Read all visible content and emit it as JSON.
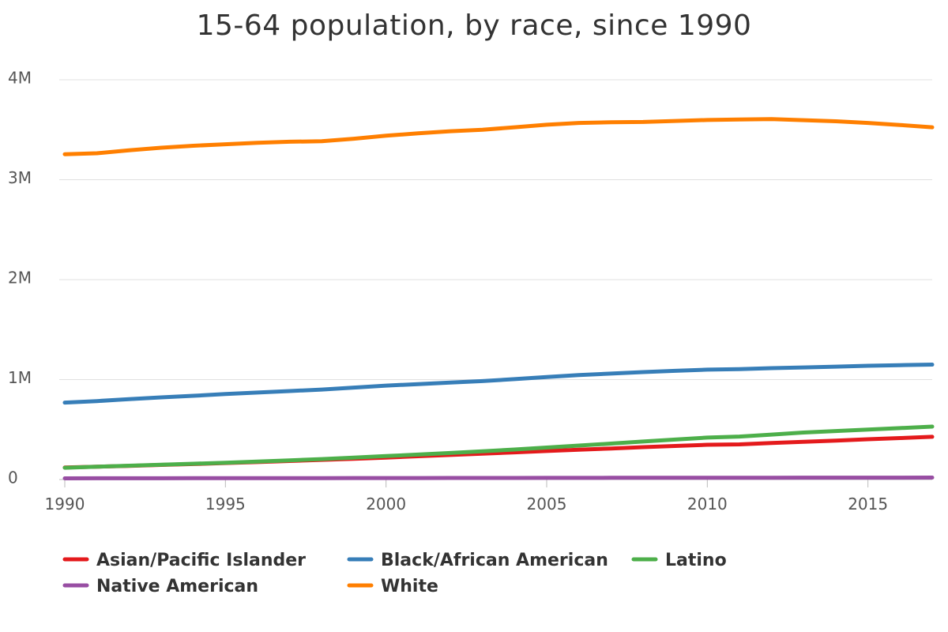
{
  "chart_data": {
    "type": "line",
    "title": "15-64 population, by race, since 1990",
    "xlabel": "",
    "ylabel": "",
    "xlim": [
      1990,
      2017
    ],
    "ylim": [
      0,
      4000000
    ],
    "x_ticks": [
      1990,
      1995,
      2000,
      2005,
      2010,
      2015
    ],
    "y_ticks": [
      {
        "value": 0,
        "label": "0"
      },
      {
        "value": 1000000,
        "label": "1M"
      },
      {
        "value": 2000000,
        "label": "2M"
      },
      {
        "value": 3000000,
        "label": "3M"
      },
      {
        "value": 4000000,
        "label": "4M"
      }
    ],
    "grid": true,
    "legend_position": "bottom-left",
    "x": [
      1990,
      1991,
      1992,
      1993,
      1994,
      1995,
      1996,
      1997,
      1998,
      1999,
      2000,
      2001,
      2002,
      2003,
      2004,
      2005,
      2006,
      2007,
      2008,
      2009,
      2010,
      2011,
      2012,
      2013,
      2014,
      2015,
      2016,
      2017
    ],
    "series": [
      {
        "name": "Asian/Pacific Islander",
        "color": "#e41a1c",
        "values": [
          120000,
          128000,
          137000,
          146000,
          155000,
          165000,
          175000,
          186000,
          197000,
          208000,
          220000,
          233000,
          246000,
          259000,
          272000,
          285000,
          298000,
          311000,
          324000,
          336000,
          348000,
          352000,
          365000,
          378000,
          390000,
          403000,
          415000,
          428000
        ]
      },
      {
        "name": "Black/African American",
        "color": "#377eb8",
        "values": [
          770000,
          785000,
          805000,
          822000,
          838000,
          855000,
          870000,
          885000,
          900000,
          920000,
          940000,
          955000,
          970000,
          985000,
          1005000,
          1025000,
          1045000,
          1060000,
          1075000,
          1088000,
          1100000,
          1105000,
          1115000,
          1122000,
          1130000,
          1138000,
          1145000,
          1150000
        ]
      },
      {
        "name": "Latino",
        "color": "#4daf4a",
        "values": [
          118000,
          128000,
          138000,
          148000,
          158000,
          168000,
          180000,
          192000,
          205000,
          220000,
          235000,
          250000,
          266000,
          282000,
          300000,
          320000,
          340000,
          360000,
          380000,
          400000,
          420000,
          430000,
          450000,
          470000,
          485000,
          500000,
          515000,
          530000
        ]
      },
      {
        "name": "Native American",
        "color": "#984ea3",
        "values": [
          12000,
          12300,
          12600,
          12900,
          13200,
          13500,
          13800,
          14100,
          14400,
          14700,
          15000,
          15300,
          15600,
          15900,
          16200,
          16500,
          16800,
          17100,
          17400,
          17700,
          18000,
          18200,
          18400,
          18600,
          18800,
          19000,
          19200,
          19400
        ]
      },
      {
        "name": "White",
        "color": "#ff7f00",
        "values": [
          3255000,
          3265000,
          3295000,
          3320000,
          3340000,
          3355000,
          3370000,
          3380000,
          3385000,
          3410000,
          3440000,
          3465000,
          3485000,
          3500000,
          3525000,
          3550000,
          3568000,
          3575000,
          3578000,
          3588000,
          3598000,
          3602000,
          3606000,
          3596000,
          3585000,
          3568000,
          3548000,
          3525000
        ]
      }
    ]
  }
}
